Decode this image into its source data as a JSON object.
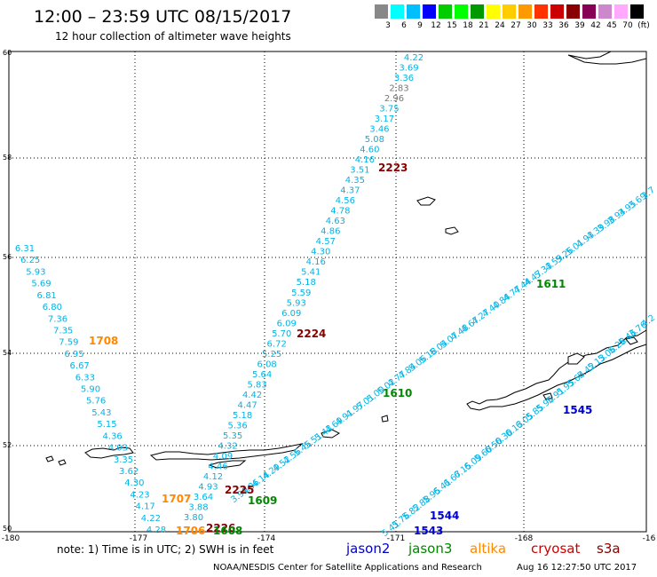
{
  "header": {
    "title": "12:00 – 23:59 UTC 08/15/2017",
    "subtitle": "12 hour collection of altimeter wave heights"
  },
  "colorbar": {
    "swatches": [
      "#888888",
      "#00ffff",
      "#00bfff",
      "#0000ff",
      "#00cc00",
      "#00ff00",
      "#009900",
      "#ffff00",
      "#ffcc00",
      "#ff9900",
      "#ff3300",
      "#cc0000",
      "#880000",
      "#880055",
      "#cc88cc",
      "#ffaaff",
      "#000000"
    ],
    "labels": [
      "3",
      "6",
      "9",
      "12",
      "15",
      "18",
      "21",
      "24",
      "27",
      "30",
      "33",
      "36",
      "39",
      "42",
      "45",
      "70",
      "(ft)"
    ]
  },
  "axes": {
    "lat_labels": [
      "60",
      "58",
      "56",
      "54",
      "52",
      "50"
    ],
    "lon_labels": [
      "-180",
      "-177",
      "-174",
      "-171",
      "-168",
      "-16"
    ]
  },
  "track_colors": {
    "jason2": "#0000cc",
    "jason3": "#008800",
    "altika": "#ff8800",
    "cryosat": "#cc0000",
    "s3a": "#880000",
    "wave": "#00b4e6",
    "wave_low": "#777777"
  },
  "pass_labels": [
    {
      "text": "2223",
      "sat": "s3a"
    },
    {
      "text": "2224",
      "sat": "s3a"
    },
    {
      "text": "2225",
      "sat": "s3a"
    },
    {
      "text": "2226",
      "sat": "s3a"
    },
    {
      "text": "1611",
      "sat": "jason3"
    },
    {
      "text": "1610",
      "sat": "jason3"
    },
    {
      "text": "1609",
      "sat": "jason3"
    },
    {
      "text": "1608",
      "sat": "jason3"
    },
    {
      "text": "1708",
      "sat": "altika"
    },
    {
      "text": "1707",
      "sat": "altika"
    },
    {
      "text": "1706",
      "sat": "altika"
    },
    {
      "text": "1545",
      "sat": "jason2"
    },
    {
      "text": "1544",
      "sat": "jason2"
    },
    {
      "text": "1543",
      "sat": "jason2"
    }
  ],
  "tracks": {
    "track_a": [
      "4.22",
      "3.69",
      "3.36",
      "2.83",
      "2.96",
      "3.75",
      "3.17",
      "3.46",
      "5.08",
      "4.60",
      "4.16",
      "3.51",
      "4.35",
      "4.37",
      "4.56",
      "4.78",
      "4.63",
      "4.86",
      "4.57",
      "4.30",
      "4.16",
      "5.41",
      "5.18",
      "5.59",
      "5.93",
      "6.09",
      "6.09",
      "5.70",
      "6.72",
      "5.25",
      "6.08",
      "5.64",
      "5.83",
      "4.42",
      "4.47",
      "5.18",
      "5.36",
      "5.35",
      "4.32",
      "4.09",
      "4.46",
      "4.12",
      "4.93",
      "3.64",
      "3.88",
      "3.80"
    ],
    "track_b": [
      "6.31",
      "6.25",
      "5.93",
      "5.69",
      "6.81",
      "6.80",
      "7.36",
      "7.35",
      "7.59",
      "6.95",
      "6.67",
      "6.33",
      "5.90",
      "5.76",
      "5.43",
      "5.15",
      "4.36",
      "4.03",
      "3.35",
      "3.62",
      "4.30",
      "4.23",
      "4.17",
      "4.22",
      "4.28"
    ],
    "track_c": [
      "3.7",
      "3.69",
      "3.95",
      "3.94",
      "3.98",
      "4.39",
      "4.93",
      "5.01",
      "5.26",
      "4.59",
      "5.33",
      "4.47",
      "4.44",
      "4.77",
      "4.84",
      "4.40",
      "4.27",
      "4.67",
      "4.48",
      "5.07",
      "5.04",
      "5.18",
      "5.06",
      "4.84",
      "4.77",
      "5.02",
      "5.00",
      "5.01",
      "4.97",
      "4.91",
      "4.69",
      "5.43",
      "5.51",
      "5.45",
      "4.56",
      "4.52",
      "4.29",
      "4.14",
      "4.06",
      "3.99"
    ],
    "track_d": [
      "4.2",
      "3.76",
      "5.46",
      "5.28",
      "5.06",
      "5.13",
      "5.42",
      "5.64",
      "5.95",
      "5.91",
      "5.96",
      "5.85",
      "6.05",
      "6.13",
      "6.30",
      "6.50",
      "5.60",
      "6.09",
      "6.15",
      "6.67",
      "6.41",
      "5.95",
      "5.88",
      "5.82",
      "5.76",
      "5.41"
    ]
  },
  "footer": {
    "note": "note: 1) Time is in UTC; 2) SWH is in feet",
    "legend": [
      {
        "name": "jason2",
        "color": "#0000cc"
      },
      {
        "name": "jason3",
        "color": "#008800"
      },
      {
        "name": "altika",
        "color": "#ff8800"
      },
      {
        "name": "cryosat",
        "color": "#cc0000"
      },
      {
        "name": "s3a",
        "color": "#880000"
      }
    ],
    "credit": "NOAA/NESDIS Center for Satellite Applications and Research",
    "timestamp": "Aug 16 12:27:50 UTC 2017"
  }
}
